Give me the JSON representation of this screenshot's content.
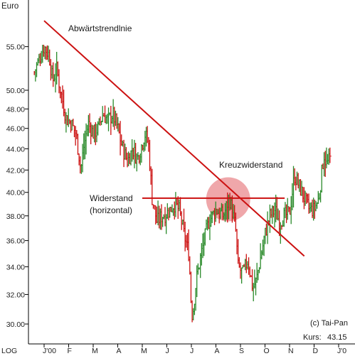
{
  "chart_data": {
    "type": "line",
    "y_unit_label": "Euro",
    "y_scale": "log",
    "y_scale_label": "LOG",
    "ylim": [
      29,
      59
    ],
    "y_ticks": [
      30,
      32,
      34,
      36,
      38,
      40,
      42,
      44,
      46,
      48,
      50,
      55
    ],
    "y_tick_labels": [
      "30.00",
      "32.00",
      "34.00",
      "36.00",
      "38.00",
      "40.00",
      "42.00",
      "44.00",
      "46.00",
      "48.00",
      "50.00",
      "55.00"
    ],
    "x_tick_labels": [
      "J'00",
      "F",
      "M",
      "A",
      "M",
      "J",
      "J",
      "A",
      "S",
      "O",
      "N",
      "D",
      "J'0"
    ],
    "x_tick_values": [
      0,
      1,
      2,
      3,
      4,
      5,
      6,
      7,
      8,
      9,
      10,
      11,
      12
    ],
    "price_points": [
      [
        -0.4,
        52
      ],
      [
        -0.2,
        53.5
      ],
      [
        0.0,
        55
      ],
      [
        0.2,
        54
      ],
      [
        0.35,
        51
      ],
      [
        0.5,
        52.5
      ],
      [
        0.7,
        49.5
      ],
      [
        0.9,
        47
      ],
      [
        1.1,
        46.5
      ],
      [
        1.3,
        45.5
      ],
      [
        1.5,
        42
      ],
      [
        1.6,
        44
      ],
      [
        1.8,
        46.5
      ],
      [
        2.0,
        45.5
      ],
      [
        2.2,
        46
      ],
      [
        2.4,
        47.5
      ],
      [
        2.6,
        46.8
      ],
      [
        2.8,
        47.5
      ],
      [
        3.0,
        46
      ],
      [
        3.2,
        44
      ],
      [
        3.4,
        42.8
      ],
      [
        3.6,
        44
      ],
      [
        3.8,
        43
      ],
      [
        4.0,
        44.5
      ],
      [
        4.1,
        45.5
      ],
      [
        4.25,
        44.5
      ],
      [
        4.4,
        39.5
      ],
      [
        4.6,
        37.5
      ],
      [
        4.8,
        38
      ],
      [
        5.0,
        38.2
      ],
      [
        5.3,
        39
      ],
      [
        5.5,
        38.5
      ],
      [
        5.7,
        36.5
      ],
      [
        5.9,
        35
      ],
      [
        6.0,
        31
      ],
      [
        6.05,
        30.5
      ],
      [
        6.2,
        33
      ],
      [
        6.4,
        35
      ],
      [
        6.7,
        37.5
      ],
      [
        7.0,
        38.5
      ],
      [
        7.3,
        38
      ],
      [
        7.55,
        39.5
      ],
      [
        7.8,
        37
      ],
      [
        7.9,
        34
      ],
      [
        8.1,
        33.5
      ],
      [
        8.3,
        34.5
      ],
      [
        8.5,
        32.5
      ],
      [
        8.65,
        33
      ],
      [
        8.8,
        34.5
      ],
      [
        9.0,
        36.5
      ],
      [
        9.2,
        38
      ],
      [
        9.4,
        38.5
      ],
      [
        9.6,
        37.5
      ],
      [
        9.8,
        38
      ],
      [
        10.0,
        38.2
      ],
      [
        10.2,
        41.5
      ],
      [
        10.4,
        40.5
      ],
      [
        10.6,
        39.5
      ],
      [
        10.8,
        38.5
      ],
      [
        11.0,
        38.5
      ],
      [
        11.2,
        39.5
      ],
      [
        11.4,
        43.5
      ],
      [
        11.5,
        42.5
      ],
      [
        11.65,
        43
      ]
    ],
    "trendline": {
      "label": "Abwärtstrendlnie",
      "points": [
        [
          0.0,
          58.2
        ],
        [
          10.6,
          34.8
        ]
      ]
    },
    "resistance_line": {
      "label": "Widerstand\n(horizontal)",
      "y": 39.5,
      "x_range": [
        4.0,
        9.8
      ]
    },
    "cross_resistance": {
      "label": "Kreuzwiderstand",
      "x": 7.5,
      "y": 39.4
    },
    "credit": "(c) Tai-Pan",
    "price_label": "Kurs:",
    "price_value": "43.15",
    "colors": {
      "trendline": "#cc1111",
      "circle": "#e98a8e",
      "candle_up": "#2a8a2a",
      "candle_down": "#cc1111",
      "axis": "#000000"
    }
  }
}
